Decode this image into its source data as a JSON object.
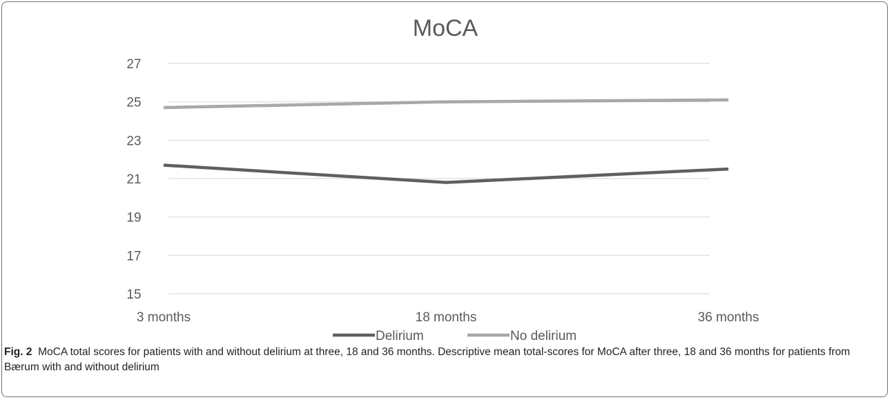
{
  "chart_data": {
    "type": "line",
    "title": "MoCA",
    "categories": [
      "3 months",
      "18 months",
      "36 months"
    ],
    "series": [
      {
        "name": "Delirium",
        "values": [
          21.7,
          20.8,
          21.5
        ],
        "color": "#5f5f5f"
      },
      {
        "name": "No delirium",
        "values": [
          24.7,
          25.0,
          25.1
        ],
        "color": "#a8a8a8"
      }
    ],
    "ylim": [
      15,
      27
    ],
    "yticks": [
      15,
      17,
      19,
      21,
      23,
      25,
      27
    ],
    "xlabel": "",
    "ylabel": "",
    "grid": true,
    "legend": "bottom",
    "grid_color": "#d9d9d9",
    "text_color": "#595959"
  },
  "caption": {
    "label": "Fig. 2",
    "text": "MoCA total scores for patients with and without delirium at three, 18 and 36 months. Descriptive mean total-scores for MoCA after three, 18 and 36 months for patients from Bærum with and without delirium"
  }
}
